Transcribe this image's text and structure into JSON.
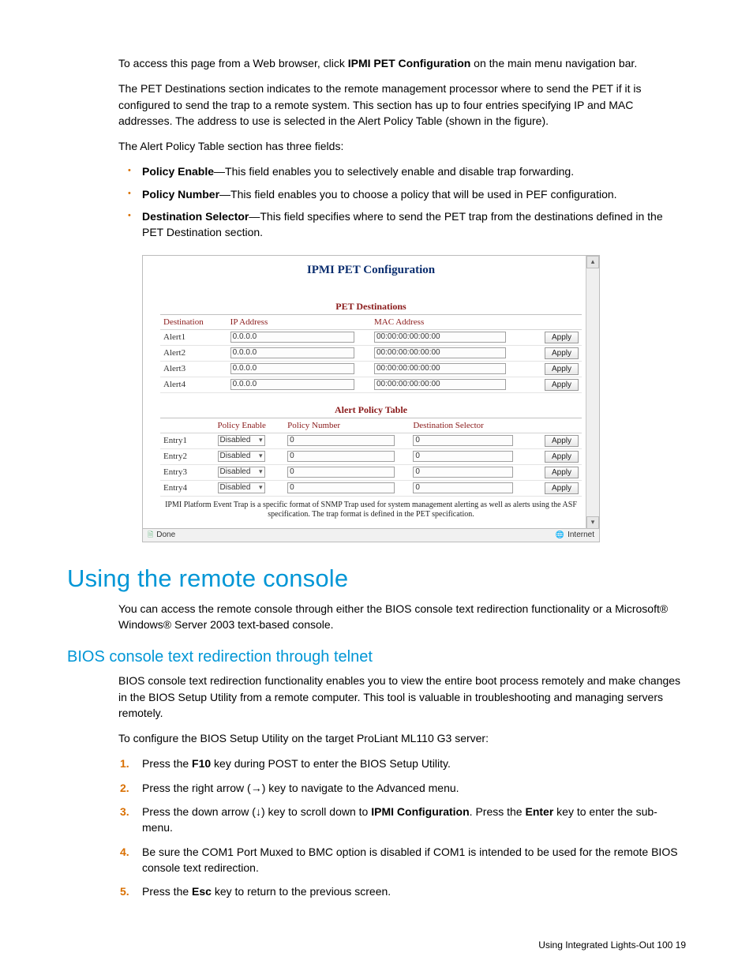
{
  "intro": {
    "p1a": "To access this page from a Web browser, click ",
    "p1b": "IPMI PET Configuration",
    "p1c": " on the main menu navigation bar.",
    "p2": "The PET Destinations section indicates to the remote management processor where to send the PET if it is configured to send the trap to a remote system. This section has up to four entries specifying IP and MAC addresses. The address to use is selected in the Alert Policy Table (shown in the figure).",
    "p3": "The Alert Policy Table section has three fields:"
  },
  "bullets": {
    "b1t": "Policy Enable",
    "b1r": "—This field enables you to selectively enable and disable trap forwarding.",
    "b2t": "Policy Number",
    "b2r": "—This field enables you to choose a policy that will be used in PEF configuration.",
    "b3t": "Destination Selector",
    "b3r": "—This field specifies where to send the PET trap from the destinations defined in the PET Destination section."
  },
  "shot": {
    "title": "IPMI PET Configuration",
    "sec1": "PET Destinations",
    "dest_hdr": {
      "c1": "Destination",
      "c2": "IP Address",
      "c3": "MAC Address"
    },
    "dest_rows": [
      {
        "name": "Alert1",
        "ip": "0.0.0.0",
        "mac": "00:00:00:00:00:00"
      },
      {
        "name": "Alert2",
        "ip": "0.0.0.0",
        "mac": "00:00:00:00:00:00"
      },
      {
        "name": "Alert3",
        "ip": "0.0.0.0",
        "mac": "00:00:00:00:00:00"
      },
      {
        "name": "Alert4",
        "ip": "0.0.0.0",
        "mac": "00:00:00:00:00:00"
      }
    ],
    "apply": "Apply",
    "sec2": "Alert Policy Table",
    "pol_hdr": {
      "c1": "Policy Enable",
      "c2": "Policy Number",
      "c3": "Destination Selector"
    },
    "pol_rows": [
      {
        "name": "Entry1",
        "en": "Disabled",
        "num": "0",
        "sel": "0"
      },
      {
        "name": "Entry2",
        "en": "Disabled",
        "num": "0",
        "sel": "0"
      },
      {
        "name": "Entry3",
        "en": "Disabled",
        "num": "0",
        "sel": "0"
      },
      {
        "name": "Entry4",
        "en": "Disabled",
        "num": "0",
        "sel": "0"
      }
    ],
    "note": "IPMI Platform Event Trap is a specific format of SNMP Trap used for system management alerting as well as alerts using the ASF specification. The trap format is defined in the PET specification.",
    "status_done": "Done",
    "status_net": "Internet"
  },
  "h1": "Using the remote console",
  "remote_p": "You can access the remote console through either the BIOS console text redirection functionality or a Microsoft® Windows® Server 2003 text-based console.",
  "h2": "BIOS console text redirection through telnet",
  "bios_p1": "BIOS console text redirection functionality enables you to view the entire boot process remotely and make changes in the BIOS Setup Utility from a remote computer. This tool is valuable in troubleshooting and managing servers remotely.",
  "bios_p2": "To configure the BIOS Setup Utility on the target ProLiant ML110 G3 server:",
  "steps": {
    "s1a": "Press the ",
    "s1b": "F10",
    "s1c": " key during POST to enter the BIOS Setup Utility.",
    "s2": "Press the right arrow (→) key to navigate to the Advanced menu.",
    "s3a": "Press the down arrow (↓) key to scroll down to ",
    "s3b": "IPMI Configuration",
    "s3c": ". Press the ",
    "s3d": "Enter",
    "s3e": " key to enter the sub-menu.",
    "s4": "Be sure the COM1 Port Muxed to BMC option is disabled if COM1 is intended to be used for the remote BIOS console text redirection.",
    "s5a": "Press the ",
    "s5b": "Esc",
    "s5c": " key to return to the previous screen."
  },
  "footer": "Using Integrated Lights-Out 100   19"
}
